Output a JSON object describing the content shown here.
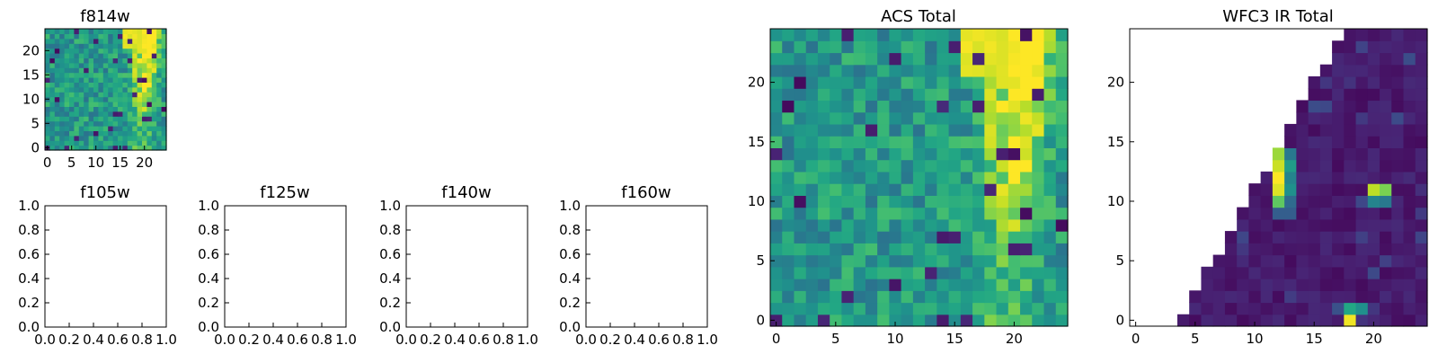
{
  "chart_data": [
    {
      "type": "heatmap",
      "title": "f814w",
      "xticks": [
        0,
        5,
        10,
        15,
        20
      ],
      "yticks": [
        0,
        5,
        10,
        15,
        20
      ],
      "xlim": [
        -0.5,
        24.5
      ],
      "ylim": [
        -0.5,
        24.5
      ],
      "colormap": "viridis",
      "values": "same as ACS Total"
    },
    {
      "type": "empty",
      "title": "f105w",
      "xticks": [
        "0.0",
        "0.2",
        "0.4",
        "0.6",
        "0.8",
        "1.0"
      ],
      "yticks": [
        "0.0",
        "0.2",
        "0.4",
        "0.6",
        "0.8",
        "1.0"
      ],
      "xlim": [
        0,
        1
      ],
      "ylim": [
        0,
        1
      ]
    },
    {
      "type": "empty",
      "title": "f125w",
      "xticks": [
        "0.0",
        "0.2",
        "0.4",
        "0.6",
        "0.8",
        "1.0"
      ],
      "yticks": [
        "0.0",
        "0.2",
        "0.4",
        "0.6",
        "0.8",
        "1.0"
      ],
      "xlim": [
        0,
        1
      ],
      "ylim": [
        0,
        1
      ]
    },
    {
      "type": "empty",
      "title": "f140w",
      "xticks": [
        "0.0",
        "0.2",
        "0.4",
        "0.6",
        "0.8",
        "1.0"
      ],
      "yticks": [
        "0.0",
        "0.2",
        "0.4",
        "0.6",
        "0.8",
        "1.0"
      ],
      "xlim": [
        0,
        1
      ],
      "ylim": [
        0,
        1
      ]
    },
    {
      "type": "empty",
      "title": "f160w",
      "xticks": [
        "0.0",
        "0.2",
        "0.4",
        "0.6",
        "0.8",
        "1.0"
      ],
      "yticks": [
        "0.0",
        "0.2",
        "0.4",
        "0.6",
        "0.8",
        "1.0"
      ],
      "xlim": [
        0,
        1
      ],
      "ylim": [
        0,
        1
      ]
    },
    {
      "type": "heatmap",
      "title": "ACS Total",
      "xticks": [
        0,
        5,
        10,
        15,
        20
      ],
      "yticks": [
        0,
        5,
        10,
        15,
        20
      ],
      "xlim": [
        -0.5,
        24.5
      ],
      "ylim": [
        -0.5,
        24.5
      ],
      "colormap": "viridis",
      "vrange": [
        0,
        1
      ],
      "description": "25x25 noisy field (values ~0.3-0.7) with a bright band (~0.85-1.0) around columns 16-23 rising toward the top, plus scattered dark pixels",
      "values": "generated"
    },
    {
      "type": "heatmap",
      "title": "WFC3 IR Total",
      "xticks": [
        0,
        5,
        10,
        15,
        20
      ],
      "yticks": [
        0,
        5,
        10,
        15,
        20
      ],
      "xlim": [
        -0.5,
        24.5
      ],
      "ylim": [
        -0.5,
        24.5
      ],
      "colormap": "viridis",
      "vrange": [
        0,
        1
      ],
      "description": "Mostly low values (dark purple) inside a wedge; NaN (white) region in the lower-left triangle; bright sources near (12,11-14), (20,10-11), (18,0-1)",
      "values": "generated"
    }
  ]
}
